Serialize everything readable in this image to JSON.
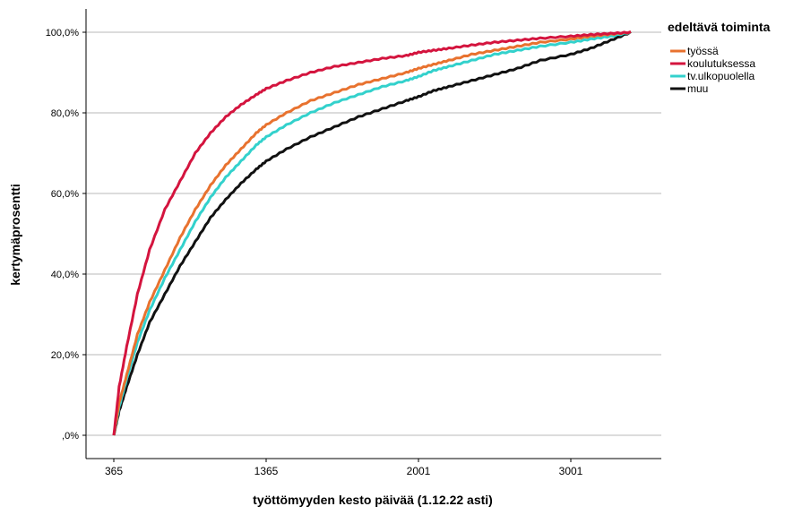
{
  "chart_data": {
    "type": "line",
    "xlabel": "työttömyyden kesto päivää (1.12.22 asti)",
    "ylabel": "kertymäprosentti",
    "x_ticks": [
      "365",
      "1365",
      "2001",
      "3001"
    ],
    "y_ticks": [
      ",0%",
      "20,0%",
      "40,0%",
      "60,0%",
      "80,0%",
      "100,0%"
    ],
    "ylim": [
      0,
      100
    ],
    "grid": "horizontal",
    "legend_title": "edeltävä toiminta",
    "legend_position": "top-right",
    "series": [
      {
        "name": "työssä",
        "color": "#e8722f",
        "x": [
          365,
          400,
          450,
          520,
          600,
          700,
          800,
          900,
          1000,
          1100,
          1200,
          1300,
          1365,
          1450,
          1550,
          1650,
          1750,
          1850,
          1950,
          2001,
          2100,
          2200,
          2350,
          2500,
          2650,
          2800,
          3001,
          3150,
          3300,
          3450
        ],
        "y": [
          0,
          8,
          15,
          25,
          33,
          41,
          49,
          56,
          62,
          67,
          71,
          75,
          77,
          80,
          83,
          85,
          87,
          88.5,
          90,
          91,
          92,
          93,
          94.5,
          95.5,
          96.5,
          97.5,
          98.3,
          99,
          99.5,
          100
        ]
      },
      {
        "name": "koulutuksessa",
        "color": "#d4143e",
        "x": [
          365,
          400,
          450,
          520,
          600,
          700,
          800,
          900,
          1000,
          1100,
          1200,
          1300,
          1365,
          1450,
          1550,
          1650,
          1750,
          1850,
          1950,
          2001,
          2100,
          2200,
          2350,
          2500,
          2650,
          2800,
          3001,
          3150,
          3300,
          3450
        ],
        "y": [
          0,
          12,
          22,
          35,
          46,
          56,
          63,
          70,
          75,
          79,
          82,
          84.5,
          86,
          88,
          90,
          91.5,
          92.5,
          93.5,
          94.2,
          95,
          95.5,
          96,
          96.8,
          97.5,
          98,
          98.5,
          99,
          99.4,
          99.7,
          100
        ]
      },
      {
        "name": "tv.ulkopuolella",
        "color": "#33d1cc",
        "x": [
          365,
          400,
          450,
          520,
          600,
          700,
          800,
          900,
          1000,
          1100,
          1200,
          1300,
          1365,
          1450,
          1550,
          1650,
          1750,
          1850,
          1950,
          2001,
          2100,
          2200,
          2350,
          2500,
          2650,
          2800,
          3001,
          3150,
          3300,
          3450
        ],
        "y": [
          0,
          7,
          14,
          23,
          31,
          39,
          46,
          53,
          59,
          64,
          68,
          72,
          74,
          77,
          80,
          82.5,
          84.5,
          86.5,
          88,
          89,
          90.5,
          91.5,
          93,
          94.5,
          95.5,
          96.5,
          97.5,
          98.3,
          99,
          100
        ]
      },
      {
        "name": "muu",
        "color": "#111111",
        "x": [
          365,
          400,
          450,
          520,
          600,
          700,
          800,
          900,
          1000,
          1100,
          1200,
          1300,
          1365,
          1450,
          1550,
          1650,
          1750,
          1850,
          1950,
          2001,
          2100,
          2200,
          2350,
          2500,
          2650,
          2800,
          3001,
          3150,
          3300,
          3450
        ],
        "y": [
          0,
          6,
          12,
          20,
          28,
          35,
          42,
          48,
          54,
          58.5,
          62.5,
          66,
          68,
          71,
          74,
          76.5,
          79,
          81,
          83,
          84,
          85.5,
          86.5,
          88,
          89.5,
          91,
          93,
          94.5,
          96,
          98,
          100
        ]
      }
    ]
  }
}
